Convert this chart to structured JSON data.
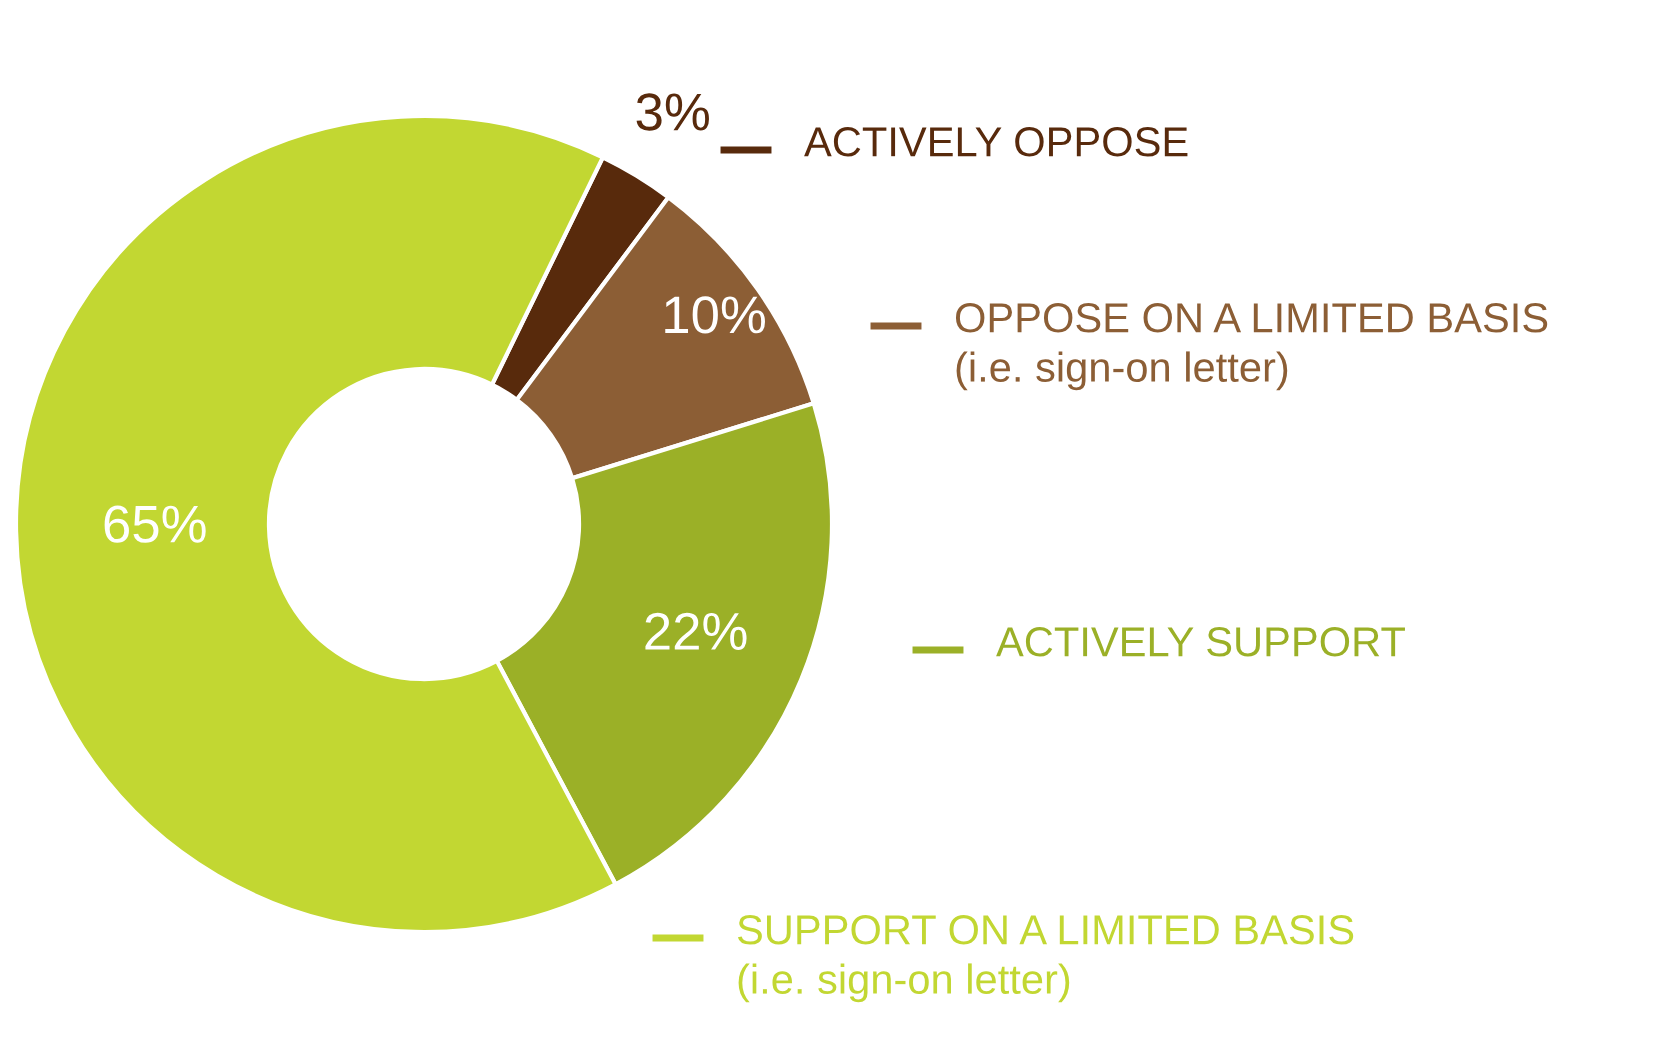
{
  "chart_data": {
    "type": "donut",
    "categories": [
      "ACTIVELY OPPOSE",
      "OPPOSE ON A LIMITED BASIS\n(i.e. sign-on letter)",
      "ACTIVELY SUPPORT",
      "SUPPORT ON A LIMITED BASIS\n(i.e. sign-on letter)"
    ],
    "values": [
      3,
      10,
      22,
      65
    ],
    "value_labels": [
      "3%",
      "10%",
      "22%",
      "65%"
    ],
    "colors": [
      "#582a0c",
      "#8c5e35",
      "#9bb027",
      "#c2d732"
    ],
    "legend": "right"
  }
}
